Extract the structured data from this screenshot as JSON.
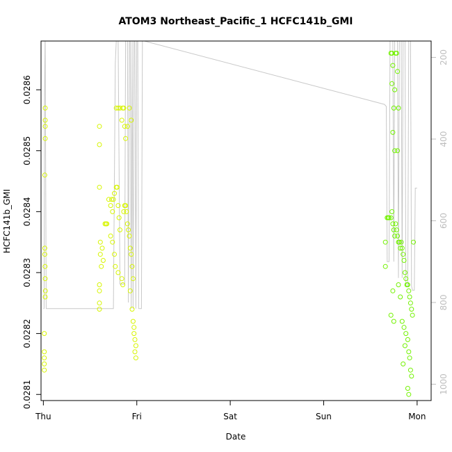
{
  "chart_data": {
    "type": "scatter",
    "title": "ATOM3 Northeast_Pacific_1 HCFC141b_GMI",
    "xlabel": "Date",
    "ylabel": "HCFC141b_GMI",
    "x_ticks": [
      "Thu",
      "Fri",
      "Sat",
      "Sun",
      "Mon"
    ],
    "xlim": [
      -0.025,
      4.15
    ],
    "ylim": [
      0.02809,
      0.02868
    ],
    "y_ticks": [
      "0.0281",
      "0.0282",
      "0.0283",
      "0.0284",
      "0.0285",
      "0.0286"
    ],
    "y_tick_values": [
      0.0281,
      0.0282,
      0.0283,
      0.0284,
      0.0285,
      0.0286
    ],
    "right_axis": {
      "ticks": [
        "200",
        "400",
        "600",
        "800",
        "1000"
      ],
      "tick_values": [
        200,
        400,
        600,
        800,
        1000
      ],
      "lim": [
        160,
        1040
      ],
      "inverted": true,
      "color": "#bdbdbd"
    },
    "pressure_trace": {
      "color": "#c8c8c8",
      "points": [
        [
          0.0,
          815
        ],
        [
          0.008,
          815
        ],
        [
          0.012,
          300
        ],
        [
          0.018,
          160
        ],
        [
          0.02,
          160
        ],
        [
          0.03,
          815
        ],
        [
          0.7,
          815
        ],
        [
          0.75,
          815
        ],
        [
          0.77,
          215
        ],
        [
          0.78,
          160
        ],
        [
          0.8,
          160
        ],
        [
          0.82,
          755
        ],
        [
          0.87,
          755
        ],
        [
          0.88,
          160
        ],
        [
          0.9,
          160
        ],
        [
          0.91,
          800
        ],
        [
          0.92,
          160
        ],
        [
          0.93,
          160
        ],
        [
          0.94,
          815
        ],
        [
          0.95,
          160
        ],
        [
          0.96,
          815
        ],
        [
          0.97,
          160
        ],
        [
          0.98,
          160
        ],
        [
          0.99,
          815
        ],
        [
          1.0,
          160
        ],
        [
          1.01,
          160
        ],
        [
          1.02,
          815
        ],
        [
          1.05,
          815
        ],
        [
          1.06,
          160
        ],
        [
          1.08,
          160
        ],
        [
          3.65,
          315
        ],
        [
          3.67,
          320
        ],
        [
          3.68,
          700
        ],
        [
          3.7,
          700
        ],
        [
          3.71,
          160
        ],
        [
          3.74,
          160
        ],
        [
          3.75,
          700
        ],
        [
          3.76,
          160
        ],
        [
          3.79,
          160
        ],
        [
          3.8,
          740
        ],
        [
          3.81,
          160
        ],
        [
          3.83,
          160
        ],
        [
          3.84,
          740
        ],
        [
          3.85,
          160
        ],
        [
          3.87,
          160
        ],
        [
          3.88,
          760
        ],
        [
          3.9,
          760
        ],
        [
          3.91,
          160
        ],
        [
          3.93,
          160
        ],
        [
          3.94,
          760
        ],
        [
          3.95,
          770
        ],
        [
          3.97,
          770
        ],
        [
          3.98,
          520
        ],
        [
          4.0,
          520
        ]
      ]
    },
    "series": [
      {
        "color": "#d7f500",
        "points": [
          [
            0.02,
            0.02857
          ],
          [
            0.02,
            0.02855
          ],
          [
            0.02,
            0.02854
          ],
          [
            0.02,
            0.02852
          ],
          [
            0.015,
            0.02846
          ],
          [
            0.015,
            0.02834
          ],
          [
            0.015,
            0.02833
          ],
          [
            0.018,
            0.02831
          ],
          [
            0.02,
            0.02829
          ],
          [
            0.022,
            0.02827
          ],
          [
            0.02,
            0.02826
          ],
          [
            0.01,
            0.0282
          ],
          [
            0.01,
            0.02817
          ],
          [
            0.01,
            0.02816
          ],
          [
            0.01,
            0.02815
          ],
          [
            0.01,
            0.02814
          ],
          [
            0.6,
            0.02854
          ],
          [
            0.6,
            0.02851
          ],
          [
            0.6,
            0.02844
          ],
          [
            0.61,
            0.02835
          ],
          [
            0.61,
            0.02833
          ],
          [
            0.62,
            0.02831
          ],
          [
            0.6,
            0.02828
          ],
          [
            0.6,
            0.02827
          ],
          [
            0.6,
            0.02825
          ],
          [
            0.6,
            0.02824
          ],
          [
            0.63,
            0.02834
          ],
          [
            0.64,
            0.02832
          ],
          [
            0.66,
            0.02838
          ],
          [
            0.67,
            0.02838
          ],
          [
            0.68,
            0.02838
          ],
          [
            0.7,
            0.02842
          ],
          [
            0.72,
            0.02841
          ],
          [
            0.73,
            0.02842
          ],
          [
            0.74,
            0.0284
          ],
          [
            0.75,
            0.02842
          ],
          [
            0.76,
            0.02843
          ],
          [
            0.78,
            0.02844
          ],
          [
            0.79,
            0.02844
          ],
          [
            0.8,
            0.02841
          ],
          [
            0.81,
            0.02839
          ],
          [
            0.82,
            0.02837
          ],
          [
            0.78,
            0.02857
          ],
          [
            0.8,
            0.02857
          ],
          [
            0.82,
            0.02857
          ],
          [
            0.84,
            0.02855
          ],
          [
            0.85,
            0.02857
          ],
          [
            0.86,
            0.02857
          ],
          [
            0.87,
            0.02854
          ],
          [
            0.88,
            0.02852
          ],
          [
            0.9,
            0.02854
          ],
          [
            0.92,
            0.02857
          ],
          [
            0.94,
            0.02855
          ],
          [
            0.86,
            0.0284
          ],
          [
            0.87,
            0.02841
          ],
          [
            0.88,
            0.02841
          ],
          [
            0.89,
            0.0284
          ],
          [
            0.9,
            0.02838
          ],
          [
            0.91,
            0.02837
          ],
          [
            0.92,
            0.02836
          ],
          [
            0.93,
            0.02834
          ],
          [
            0.94,
            0.02833
          ],
          [
            0.95,
            0.02831
          ],
          [
            0.96,
            0.02829
          ],
          [
            0.93,
            0.02827
          ],
          [
            0.95,
            0.02824
          ],
          [
            0.96,
            0.02822
          ],
          [
            0.97,
            0.02821
          ],
          [
            0.97,
            0.0282
          ],
          [
            0.98,
            0.02819
          ],
          [
            0.99,
            0.02818
          ],
          [
            0.98,
            0.02817
          ],
          [
            0.99,
            0.02816
          ],
          [
            0.76,
            0.02833
          ],
          [
            0.77,
            0.02831
          ],
          [
            0.8,
            0.0283
          ],
          [
            0.84,
            0.02829
          ],
          [
            0.85,
            0.02828
          ],
          [
            0.72,
            0.02836
          ],
          [
            0.74,
            0.02835
          ]
        ]
      },
      {
        "color": "#72f200",
        "points": [
          [
            3.66,
            0.02835
          ],
          [
            3.66,
            0.02831
          ],
          [
            3.68,
            0.02839
          ],
          [
            3.69,
            0.02839
          ],
          [
            3.7,
            0.02839
          ],
          [
            3.72,
            0.02839
          ],
          [
            3.73,
            0.0284
          ],
          [
            3.74,
            0.02838
          ],
          [
            3.75,
            0.02837
          ],
          [
            3.76,
            0.02836
          ],
          [
            3.77,
            0.02838
          ],
          [
            3.78,
            0.02837
          ],
          [
            3.79,
            0.02836
          ],
          [
            3.8,
            0.02835
          ],
          [
            3.81,
            0.02835
          ],
          [
            3.82,
            0.02834
          ],
          [
            3.83,
            0.02835
          ],
          [
            3.84,
            0.02834
          ],
          [
            3.85,
            0.02833
          ],
          [
            3.86,
            0.02832
          ],
          [
            3.87,
            0.0283
          ],
          [
            3.88,
            0.02829
          ],
          [
            3.89,
            0.02828
          ],
          [
            3.9,
            0.02828
          ],
          [
            3.91,
            0.02827
          ],
          [
            3.92,
            0.02826
          ],
          [
            3.93,
            0.02825
          ],
          [
            3.94,
            0.02824
          ],
          [
            3.95,
            0.02823
          ],
          [
            3.96,
            0.02835
          ],
          [
            3.72,
            0.02866
          ],
          [
            3.73,
            0.02866
          ],
          [
            3.74,
            0.02864
          ],
          [
            3.73,
            0.02861
          ],
          [
            3.75,
            0.02857
          ],
          [
            3.77,
            0.02866
          ],
          [
            3.78,
            0.02866
          ],
          [
            3.79,
            0.02863
          ],
          [
            3.8,
            0.02857
          ],
          [
            3.76,
            0.0286
          ],
          [
            3.74,
            0.02853
          ],
          [
            3.76,
            0.0285
          ],
          [
            3.79,
            0.0285
          ],
          [
            3.72,
            0.02823
          ],
          [
            3.74,
            0.02827
          ],
          [
            3.75,
            0.02822
          ],
          [
            3.84,
            0.02822
          ],
          [
            3.86,
            0.02821
          ],
          [
            3.88,
            0.0282
          ],
          [
            3.9,
            0.02819
          ],
          [
            3.91,
            0.02817
          ],
          [
            3.92,
            0.02816
          ],
          [
            3.93,
            0.02814
          ],
          [
            3.94,
            0.02813
          ],
          [
            3.9,
            0.02811
          ],
          [
            3.91,
            0.0281
          ],
          [
            3.85,
            0.02815
          ],
          [
            3.87,
            0.02818
          ],
          [
            3.82,
            0.02826
          ],
          [
            3.8,
            0.02828
          ]
        ]
      }
    ]
  }
}
